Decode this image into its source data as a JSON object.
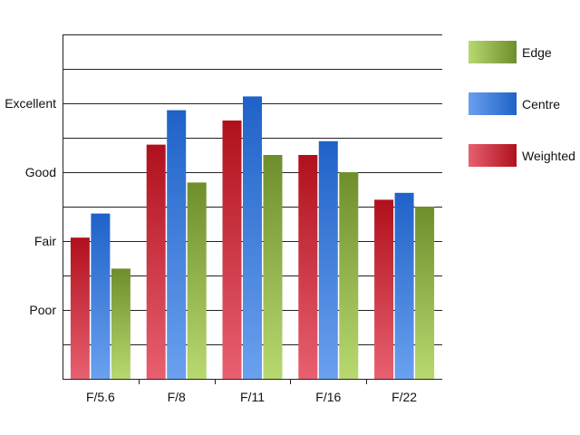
{
  "chart_data": {
    "type": "bar",
    "title": "",
    "xlabel": "",
    "ylabel": "",
    "categories": [
      "F/5.6",
      "F/8",
      "F/11",
      "F/16",
      "F/22"
    ],
    "series": [
      {
        "name": "Weighted",
        "values": [
          2.05,
          3.4,
          3.75,
          3.25,
          2.6
        ],
        "color_top": "#b0101c",
        "color_bottom": "#e86070"
      },
      {
        "name": "Centre",
        "values": [
          2.4,
          3.9,
          4.1,
          3.45,
          2.7
        ],
        "color_top": "#1f62c8",
        "color_bottom": "#6aa0ee"
      },
      {
        "name": "Edge",
        "values": [
          1.6,
          2.85,
          3.25,
          3.0,
          2.5
        ],
        "color_top": "#6e8e2c",
        "color_bottom": "#b8d870"
      }
    ],
    "y_axis": {
      "min": 0,
      "max": 5,
      "tick_labels": [
        {
          "value": 1,
          "label": "Poor"
        },
        {
          "value": 2,
          "label": "Fair"
        },
        {
          "value": 3,
          "label": "Good"
        },
        {
          "value": 4,
          "label": "Excellent"
        }
      ]
    },
    "grid": true,
    "legend": {
      "placement": "right",
      "order": [
        "Edge",
        "Centre",
        "Weighted"
      ]
    }
  }
}
